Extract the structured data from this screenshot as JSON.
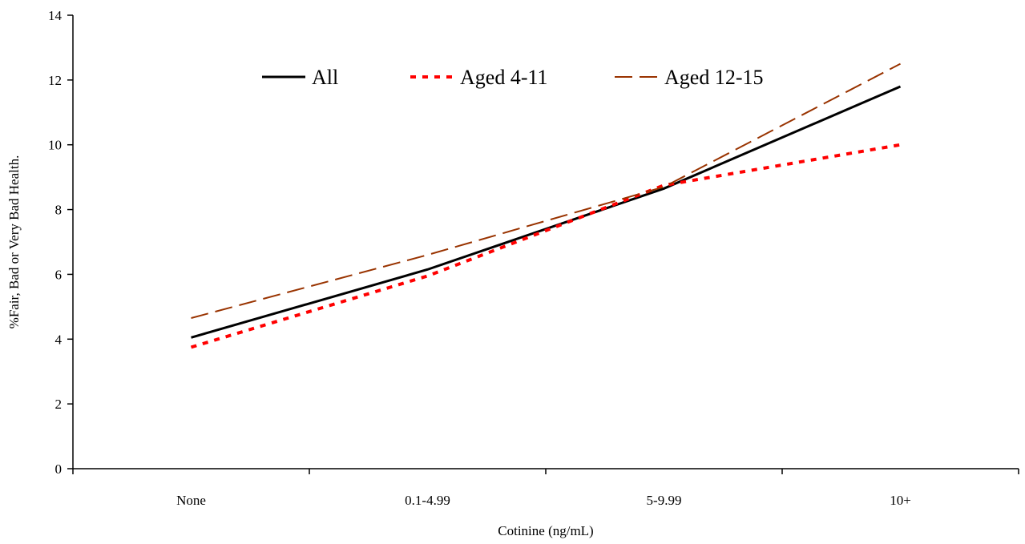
{
  "chart_data": {
    "type": "line",
    "categories": [
      "None",
      "0.1-4.99",
      "5-9.99",
      "10+"
    ],
    "series": [
      {
        "name": "All",
        "values": [
          4.05,
          6.15,
          8.65,
          11.8
        ],
        "color": "#000000",
        "style": "solid"
      },
      {
        "name": "Aged 4-11",
        "values": [
          3.75,
          5.95,
          8.75,
          10.0
        ],
        "color": "#ff0000",
        "style": "dotted"
      },
      {
        "name": "Aged 12-15",
        "values": [
          4.65,
          6.6,
          8.7,
          12.5
        ],
        "color": "#993300",
        "style": "dashed"
      }
    ],
    "xlabel": "Cotinine (ng/mL)",
    "ylabel": "%Fair, Bad or Very Bad Health.",
    "ylim": [
      0,
      14
    ],
    "yticks": [
      0,
      2,
      4,
      6,
      8,
      10,
      12,
      14
    ],
    "grid": false,
    "legend_position": "top"
  }
}
